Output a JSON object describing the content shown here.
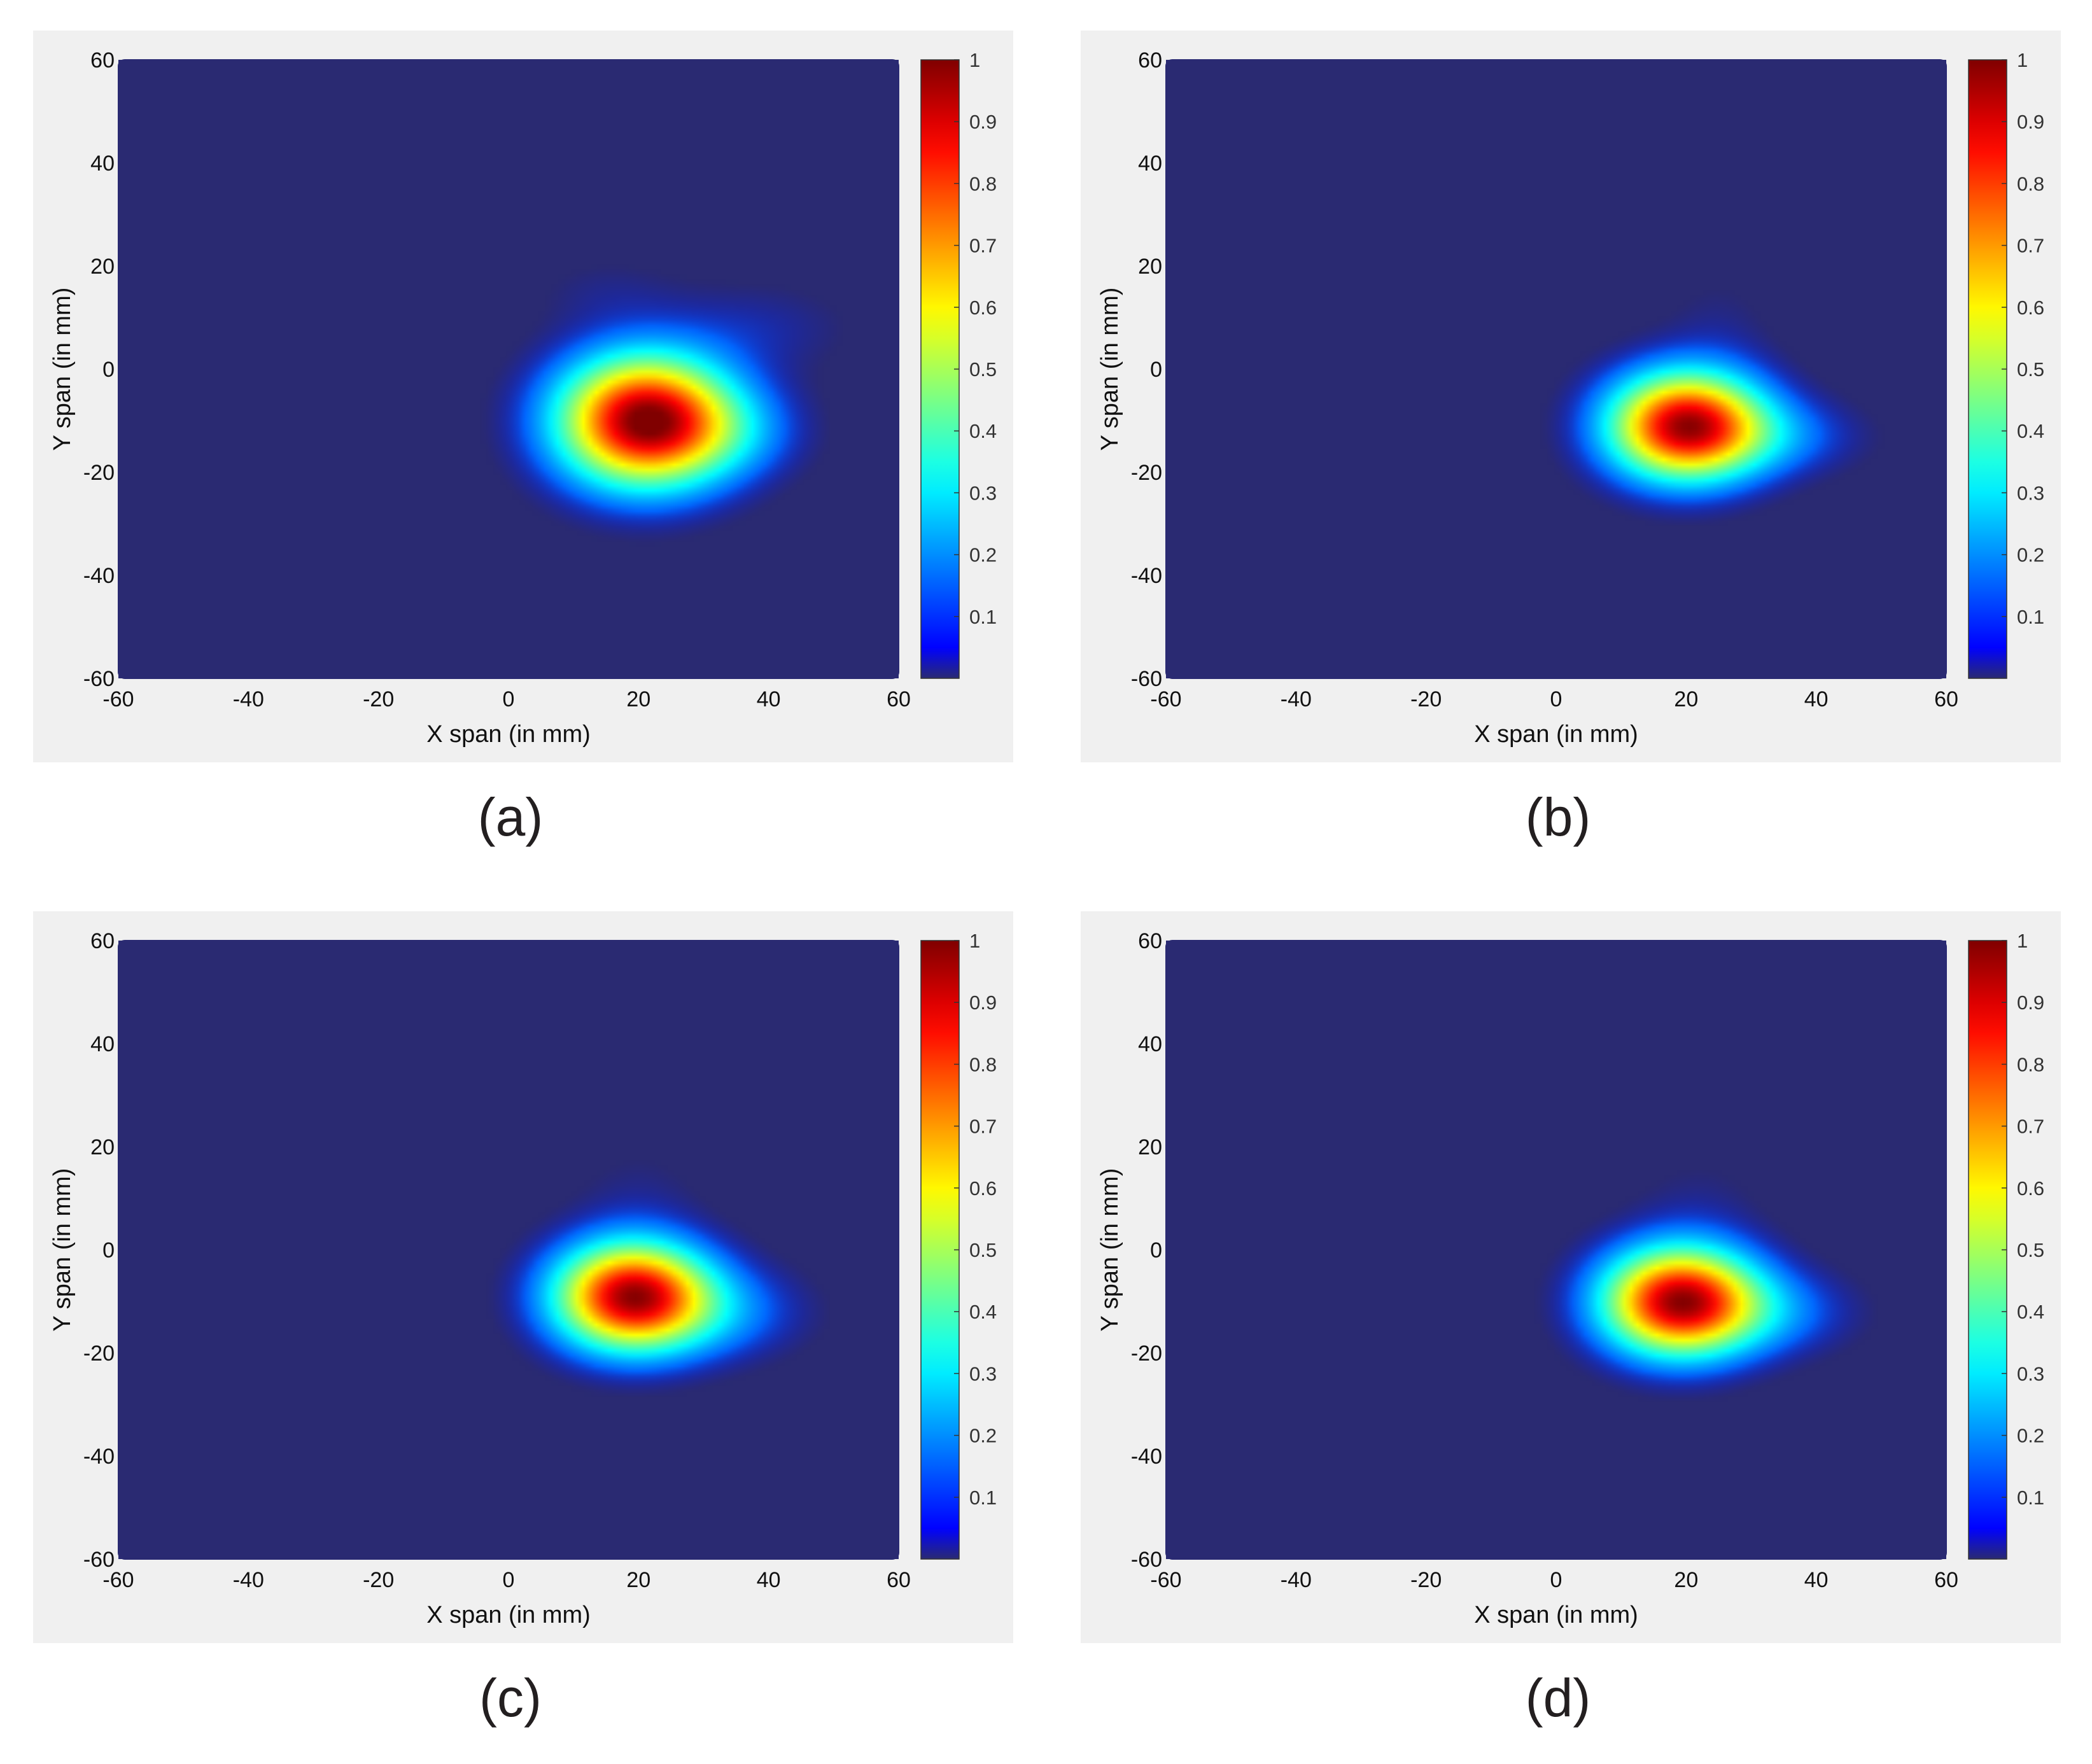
{
  "colorbar": {
    "colormap": "jet",
    "range": [
      0,
      1
    ],
    "ticks": [
      0.1,
      0.2,
      0.3,
      0.4,
      0.5,
      0.6,
      0.7,
      0.8,
      0.9,
      1
    ],
    "tick_labels": [
      "0.1",
      "0.2",
      "0.3",
      "0.4",
      "0.5",
      "0.6",
      "0.7",
      "0.8",
      "0.9",
      "1"
    ]
  },
  "background_color": "#2a2a72",
  "chart_data": [
    {
      "type": "heatmap",
      "caption": "(a)",
      "xlabel": "X span (in mm)",
      "ylabel": "Y span (in mm)",
      "xlim": [
        -60,
        60
      ],
      "ylim": [
        -60,
        60
      ],
      "xticks": [
        -60,
        -40,
        -20,
        0,
        20,
        40,
        60
      ],
      "yticks": [
        -60,
        -40,
        -20,
        0,
        20,
        40,
        60
      ],
      "peak": {
        "x": 21,
        "y": -11,
        "value": 1.0
      },
      "blobs": [
        {
          "x": 21,
          "y": -10,
          "sx": 9,
          "sy": 8.5,
          "amp": 1.0
        },
        {
          "x": 33,
          "y": -12,
          "sx": 8,
          "sy": 6,
          "amp": 0.12
        },
        {
          "x": 38,
          "y": 8,
          "sx": 10,
          "sy": 6,
          "amp": 0.05
        },
        {
          "x": 15,
          "y": 15,
          "sx": 8,
          "sy": 5,
          "amp": 0.03
        }
      ]
    },
    {
      "type": "heatmap",
      "caption": "(b)",
      "xlabel": "X span (in mm)",
      "ylabel": "Y span (in mm)",
      "xlim": [
        -60,
        60
      ],
      "ylim": [
        -60,
        60
      ],
      "xticks": [
        -60,
        -40,
        -20,
        0,
        20,
        40,
        60
      ],
      "yticks": [
        -60,
        -40,
        -20,
        0,
        20,
        40,
        60
      ],
      "peak": {
        "x": 20,
        "y": -11,
        "value": 0.95
      },
      "blobs": [
        {
          "x": 20,
          "y": -11,
          "sx": 8,
          "sy": 7,
          "amp": 0.95
        },
        {
          "x": 33,
          "y": -13,
          "sx": 9,
          "sy": 5,
          "amp": 0.12
        },
        {
          "x": 25,
          "y": 8,
          "sx": 6,
          "sy": 8,
          "amp": 0.03
        }
      ]
    },
    {
      "type": "heatmap",
      "caption": "(c)",
      "xlabel": "X span (in mm)",
      "ylabel": "Y span (in mm)",
      "xlim": [
        -60,
        60
      ],
      "ylim": [
        -60,
        60
      ],
      "xticks": [
        -60,
        -40,
        -20,
        0,
        20,
        40,
        60
      ],
      "yticks": [
        -60,
        -40,
        -20,
        0,
        20,
        40,
        60
      ],
      "peak": {
        "x": 19,
        "y": -9,
        "value": 0.95
      },
      "blobs": [
        {
          "x": 19,
          "y": -9,
          "sx": 8,
          "sy": 7,
          "amp": 0.95
        },
        {
          "x": 32,
          "y": -12,
          "sx": 9,
          "sy": 6,
          "amp": 0.13
        },
        {
          "x": 20,
          "y": 10,
          "sx": 7,
          "sy": 8,
          "amp": 0.03
        }
      ]
    },
    {
      "type": "heatmap",
      "caption": "(d)",
      "xlabel": "X span (in mm)",
      "ylabel": "Y span (in mm)",
      "xlim": [
        -60,
        60
      ],
      "ylim": [
        -60,
        60
      ],
      "xticks": [
        -60,
        -40,
        -20,
        0,
        20,
        40,
        60
      ],
      "yticks": [
        -60,
        -40,
        -20,
        0,
        20,
        40,
        60
      ],
      "peak": {
        "x": 19,
        "y": -10,
        "value": 0.95
      },
      "blobs": [
        {
          "x": 19,
          "y": -10,
          "sx": 8,
          "sy": 7,
          "amp": 0.95
        },
        {
          "x": 32,
          "y": -12,
          "sx": 9,
          "sy": 5.5,
          "amp": 0.13
        },
        {
          "x": 22,
          "y": 8,
          "sx": 7,
          "sy": 8,
          "amp": 0.03
        }
      ]
    }
  ]
}
